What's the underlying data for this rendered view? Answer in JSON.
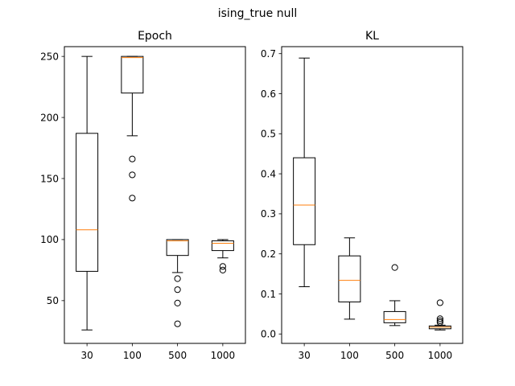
{
  "figure": {
    "suptitle": "ising_true null"
  },
  "chart_data": [
    {
      "type": "box",
      "title": "Epoch",
      "categories": [
        "30",
        "100",
        "500",
        "1000"
      ],
      "ylim": [
        15,
        258
      ],
      "yticks": [
        50,
        100,
        150,
        200,
        250
      ],
      "ytick_labels": [
        "50",
        "100",
        "150",
        "200",
        "250"
      ],
      "boxes": [
        {
          "label": "30",
          "whislo": 26,
          "q1": 74,
          "med": 108,
          "q3": 187,
          "whishi": 250,
          "fliers": []
        },
        {
          "label": "100",
          "whislo": 185,
          "q1": 220,
          "med": 249,
          "q3": 250,
          "whishi": 250,
          "fliers": [
            166,
            153,
            134
          ]
        },
        {
          "label": "500",
          "whislo": 73,
          "q1": 87,
          "med": 99,
          "q3": 100,
          "whishi": 100,
          "fliers": [
            68,
            59,
            48,
            31
          ]
        },
        {
          "label": "1000",
          "whislo": 85,
          "q1": 91,
          "med": 97,
          "q3": 99,
          "whishi": 100,
          "fliers": [
            78,
            75
          ]
        }
      ],
      "median_color": "#ff7f0e",
      "box_color": "#000000"
    },
    {
      "type": "box",
      "title": "KL",
      "categories": [
        "30",
        "100",
        "500",
        "1000"
      ],
      "ylim": [
        -0.0235,
        0.7175
      ],
      "yticks": [
        0.0,
        0.1,
        0.2,
        0.3,
        0.4,
        0.5,
        0.6,
        0.7
      ],
      "ytick_labels": [
        "0.0",
        "0.1",
        "0.2",
        "0.3",
        "0.4",
        "0.5",
        "0.6",
        "0.7"
      ],
      "boxes": [
        {
          "label": "30",
          "whislo": 0.118,
          "q1": 0.223,
          "med": 0.322,
          "q3": 0.44,
          "whishi": 0.689,
          "fliers": []
        },
        {
          "label": "100",
          "whislo": 0.037,
          "q1": 0.08,
          "med": 0.134,
          "q3": 0.195,
          "whishi": 0.24,
          "fliers": []
        },
        {
          "label": "500",
          "whislo": 0.021,
          "q1": 0.028,
          "med": 0.036,
          "q3": 0.056,
          "whishi": 0.083,
          "fliers": [
            0.166
          ]
        },
        {
          "label": "1000",
          "whislo": 0.01,
          "q1": 0.013,
          "med": 0.017,
          "q3": 0.02,
          "whishi": 0.022,
          "fliers": [
            0.078,
            0.038,
            0.033,
            0.029
          ]
        }
      ],
      "median_color": "#ff7f0e",
      "box_color": "#000000"
    }
  ]
}
